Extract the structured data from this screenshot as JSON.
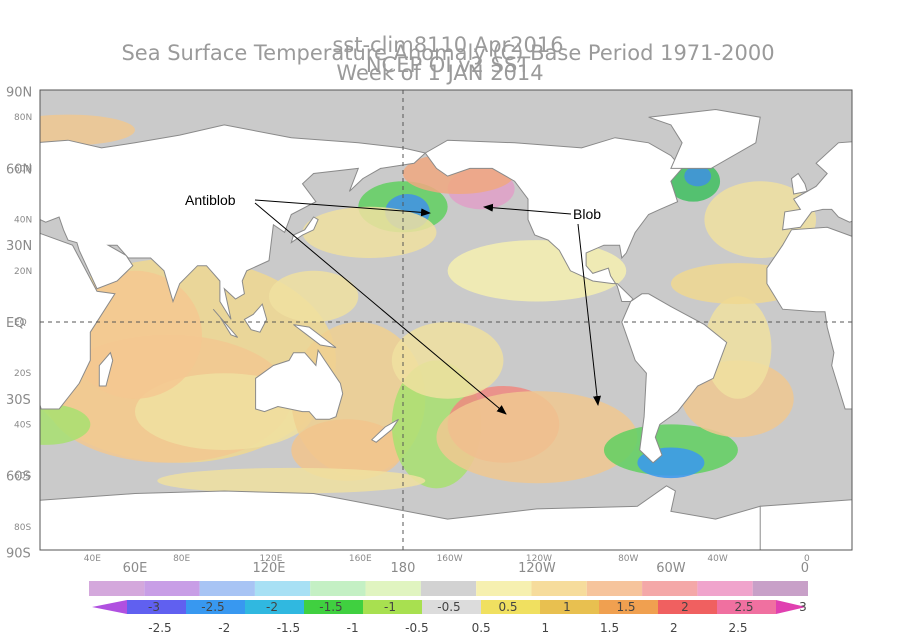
{
  "title": {
    "main": "Sea Surface Temperature Anomaly (C) Base Period 1971-2000",
    "overlay": "sst-clim8110 Apr2016",
    "source": "NCEP OI v2 SST",
    "week": "Week of 1 JAN 2014"
  },
  "map": {
    "lat_labels_large": [
      "90N",
      "60N",
      "30N",
      "EQ",
      "30S",
      "60S",
      "90S"
    ],
    "lat_labels_small": [
      "80N",
      "60N",
      "40N",
      "20N",
      "EQ",
      "20S",
      "40S",
      "60S",
      "80S"
    ],
    "lon_labels_large": [
      "60E",
      "120E",
      "180",
      "120W",
      "60W",
      "0"
    ],
    "lon_labels_small": [
      "40E",
      "80E",
      "120E",
      "160E",
      "160W",
      "120W",
      "80W",
      "40W",
      "0"
    ]
  },
  "annotations": {
    "antiblob": "Antiblob",
    "blob": "Blob"
  },
  "colorbar": {
    "upper_labels": [
      -3,
      -2.5,
      -2,
      -1.5,
      -1,
      -0.5,
      0.5,
      1,
      1.5,
      2,
      2.5,
      3
    ],
    "lower_labels": [
      -2.5,
      -2,
      -1.5,
      -1,
      -0.5,
      0.5,
      1,
      1.5,
      2,
      2.5
    ],
    "upper_colors": [
      "#d4a8dc",
      "#c89ee6",
      "#a8c4f4",
      "#a8e0f4",
      "#c4f0c4",
      "#e0f4c0",
      "#d2d2d2",
      "#f6f0b0",
      "#f6dc9c",
      "#f6c49c",
      "#f4a8a8",
      "#f0a4cc",
      "#c8a0c8"
    ],
    "lower_colors": [
      "#b050e0",
      "#6060f0",
      "#3898f0",
      "#30b8e0",
      "#40d040",
      "#a8e050",
      "#dcdcdc",
      "#f0e060",
      "#e8c050",
      "#f0a050",
      "#f06060",
      "#f070a0",
      "#e040b0"
    ]
  }
}
